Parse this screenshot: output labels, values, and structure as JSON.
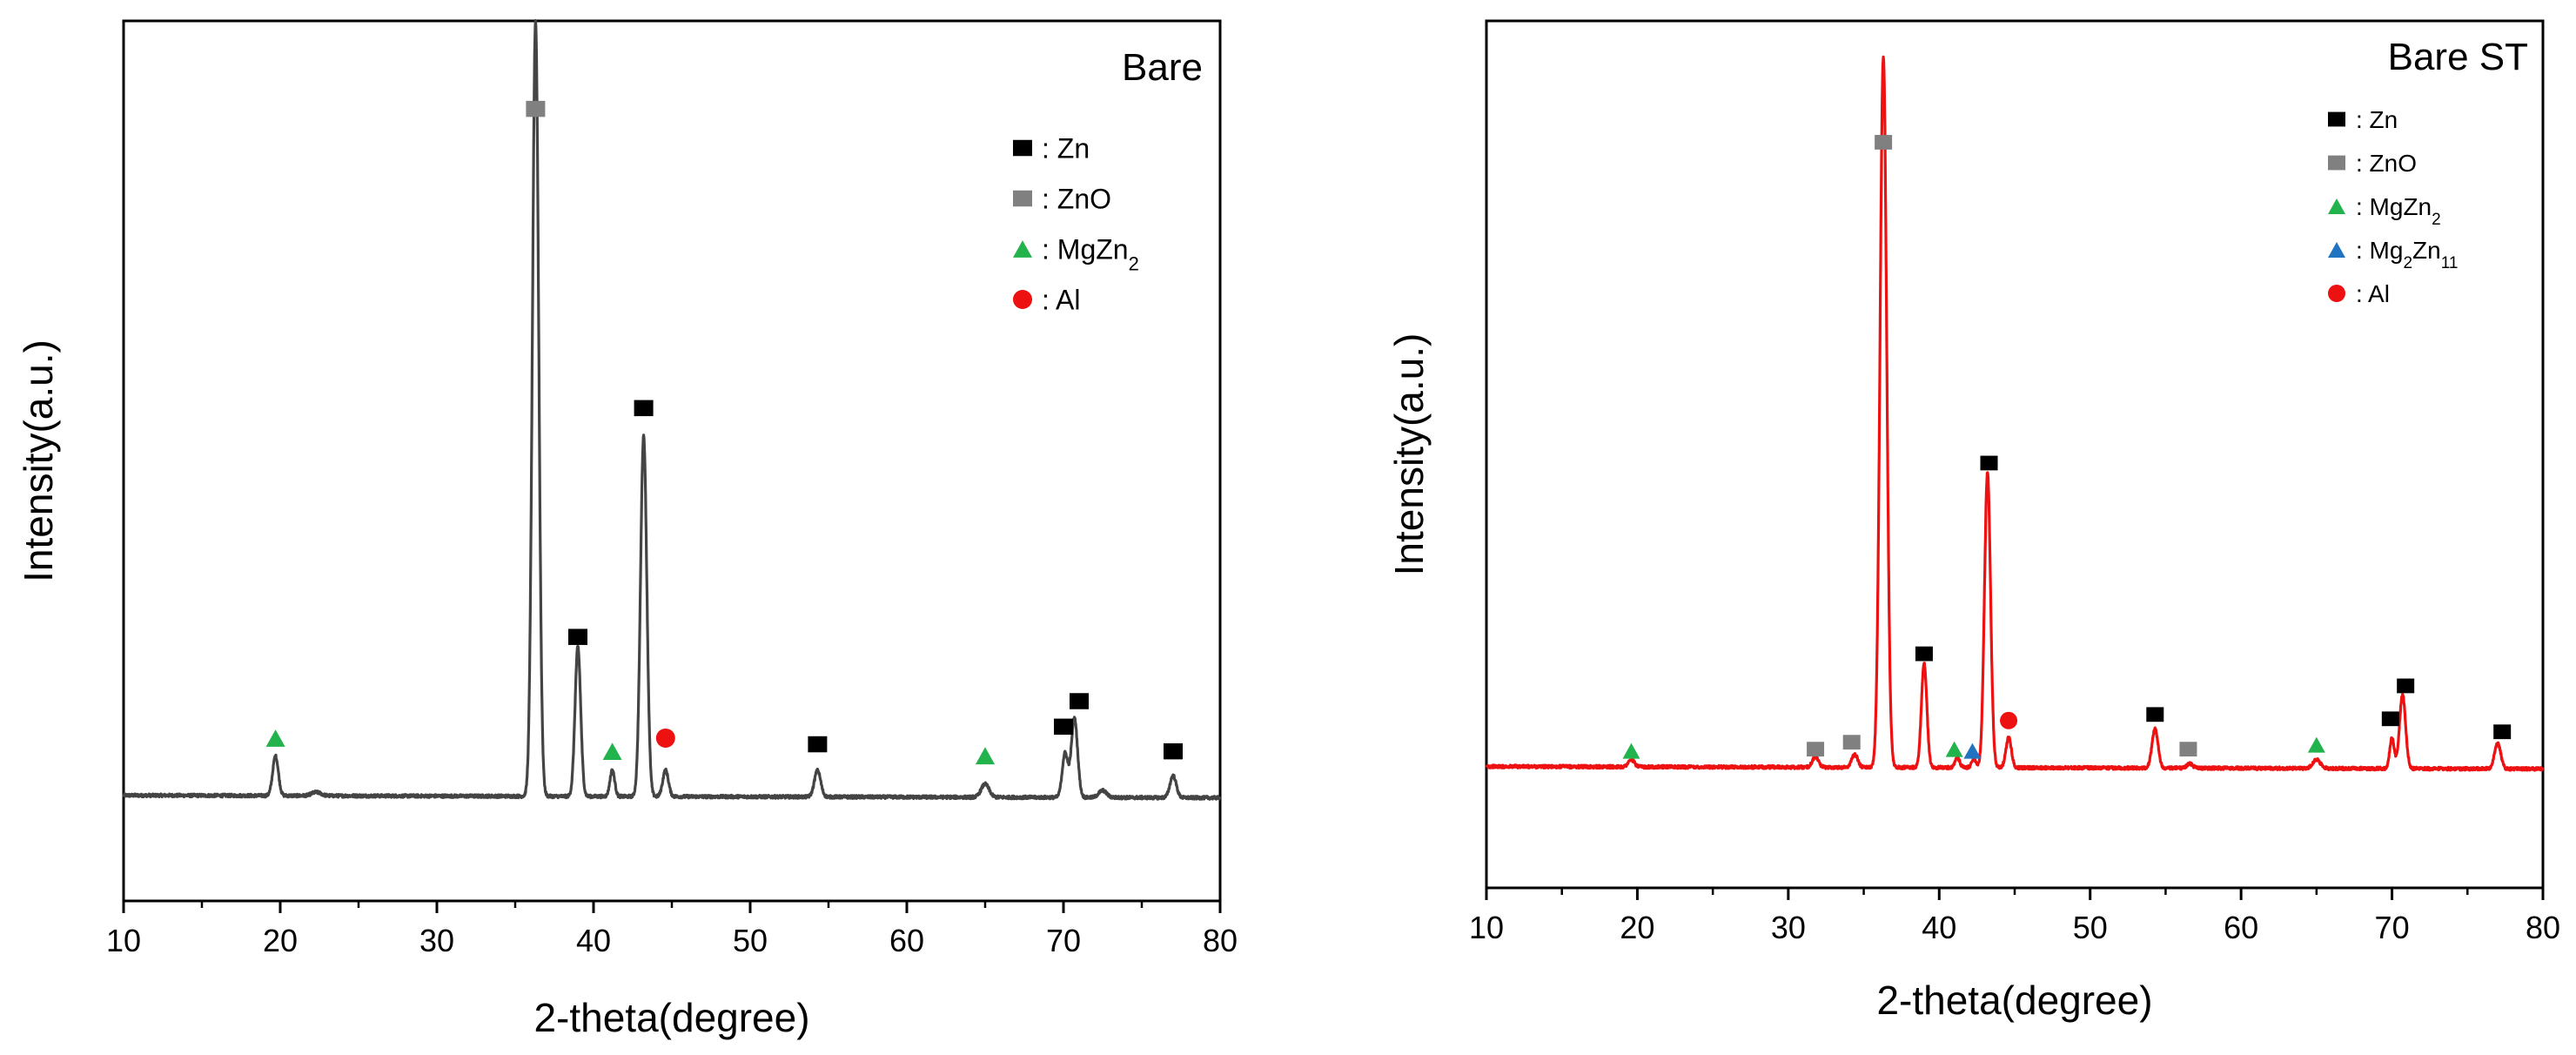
{
  "chart_data": [
    {
      "type": "line",
      "title": "Bare",
      "xlabel": "2-theta(degree)",
      "ylabel": "Intensity(a.u.)",
      "xlim": [
        10,
        80
      ],
      "ylim": [
        0,
        100
      ],
      "x_ticks": [
        10,
        20,
        30,
        40,
        50,
        60,
        70,
        80
      ],
      "line_color": "#444444",
      "baseline": 12,
      "series": [
        {
          "name": "Bare",
          "peaks": [
            {
              "x": 19.7,
              "h": 4.5,
              "w": 0.18
            },
            {
              "x": 22.3,
              "h": 0.4,
              "w": 0.3
            },
            {
              "x": 36.3,
              "h": 88,
              "w": 0.2
            },
            {
              "x": 39.0,
              "h": 17,
              "w": 0.18
            },
            {
              "x": 41.2,
              "h": 3,
              "w": 0.15
            },
            {
              "x": 43.2,
              "h": 41,
              "w": 0.2
            },
            {
              "x": 44.6,
              "h": 3,
              "w": 0.18
            },
            {
              "x": 54.3,
              "h": 3,
              "w": 0.2
            },
            {
              "x": 65.0,
              "h": 1.5,
              "w": 0.25
            },
            {
              "x": 70.1,
              "h": 5,
              "w": 0.18
            },
            {
              "x": 70.7,
              "h": 9,
              "w": 0.2
            },
            {
              "x": 72.5,
              "h": 0.8,
              "w": 0.25
            },
            {
              "x": 77.0,
              "h": 2.5,
              "w": 0.2
            }
          ]
        }
      ],
      "markers": [
        {
          "phase": "ZnO",
          "x": 36.3,
          "y": 90
        },
        {
          "phase": "Zn",
          "x": 43.2,
          "y": 56
        },
        {
          "phase": "Zn",
          "x": 39.0,
          "y": 30
        },
        {
          "phase": "MgZn2",
          "x": 19.7,
          "y": 18.5
        },
        {
          "phase": "MgZn2",
          "x": 41.2,
          "y": 17
        },
        {
          "phase": "Al",
          "x": 44.6,
          "y": 18.5
        },
        {
          "phase": "Zn",
          "x": 54.3,
          "y": 17.8
        },
        {
          "phase": "MgZn2",
          "x": 65.0,
          "y": 16.5
        },
        {
          "phase": "Zn",
          "x": 70.0,
          "y": 19.8
        },
        {
          "phase": "Zn",
          "x": 71.0,
          "y": 22.7
        },
        {
          "phase": "Zn",
          "x": 77.0,
          "y": 17
        }
      ],
      "legend": [
        {
          "phase": "Zn",
          "label": ": Zn"
        },
        {
          "phase": "ZnO",
          "label": ": ZnO"
        },
        {
          "phase": "MgZn2",
          "label": ": MgZn",
          "sub": "2"
        },
        {
          "phase": "Al",
          "label": ": Al"
        }
      ],
      "legend_position": "top-right"
    },
    {
      "type": "line",
      "title": "Bare ST",
      "xlabel": "2-theta(degree)",
      "ylabel": "Intensity(a.u.)",
      "xlim": [
        10,
        80
      ],
      "ylim": [
        0,
        100
      ],
      "x_ticks": [
        10,
        20,
        30,
        40,
        50,
        60,
        70,
        80
      ],
      "line_color": "#ee1111",
      "baseline": 14,
      "series": [
        {
          "name": "Bare ST",
          "peaks": [
            {
              "x": 19.6,
              "h": 0.8,
              "w": 0.2
            },
            {
              "x": 31.8,
              "h": 1.2,
              "w": 0.2
            },
            {
              "x": 34.4,
              "h": 1.5,
              "w": 0.2
            },
            {
              "x": 36.3,
              "h": 82,
              "w": 0.22
            },
            {
              "x": 39.0,
              "h": 12,
              "w": 0.18
            },
            {
              "x": 41.2,
              "h": 1.2,
              "w": 0.15
            },
            {
              "x": 42.3,
              "h": 1.0,
              "w": 0.15
            },
            {
              "x": 43.2,
              "h": 34,
              "w": 0.2
            },
            {
              "x": 44.6,
              "h": 3.5,
              "w": 0.18
            },
            {
              "x": 54.3,
              "h": 4.5,
              "w": 0.2
            },
            {
              "x": 56.6,
              "h": 0.5,
              "w": 0.2
            },
            {
              "x": 65.0,
              "h": 1.0,
              "w": 0.25
            },
            {
              "x": 70.0,
              "h": 3.5,
              "w": 0.15
            },
            {
              "x": 70.7,
              "h": 8.5,
              "w": 0.2
            },
            {
              "x": 77.0,
              "h": 3.0,
              "w": 0.2
            }
          ]
        }
      ],
      "markers": [
        {
          "phase": "ZnO",
          "x": 36.3,
          "y": 86
        },
        {
          "phase": "Zn",
          "x": 43.3,
          "y": 49
        },
        {
          "phase": "Zn",
          "x": 39.0,
          "y": 27
        },
        {
          "phase": "MgZn2",
          "x": 19.6,
          "y": 15.8
        },
        {
          "phase": "ZnO",
          "x": 31.8,
          "y": 16
        },
        {
          "phase": "ZnO",
          "x": 34.2,
          "y": 16.8
        },
        {
          "phase": "MgZn2",
          "x": 41.0,
          "y": 16
        },
        {
          "phase": "Mg2Zn11",
          "x": 42.2,
          "y": 15.8
        },
        {
          "phase": "Al",
          "x": 44.6,
          "y": 19.3
        },
        {
          "phase": "Zn",
          "x": 54.3,
          "y": 20
        },
        {
          "phase": "ZnO",
          "x": 56.5,
          "y": 16
        },
        {
          "phase": "MgZn2",
          "x": 65.0,
          "y": 16.5
        },
        {
          "phase": "Zn",
          "x": 69.9,
          "y": 19.5
        },
        {
          "phase": "Zn",
          "x": 70.9,
          "y": 23.3
        },
        {
          "phase": "Zn",
          "x": 77.3,
          "y": 18
        }
      ],
      "legend": [
        {
          "phase": "Zn",
          "label": ": Zn"
        },
        {
          "phase": "ZnO",
          "label": ": ZnO"
        },
        {
          "phase": "MgZn2",
          "label": ": MgZn",
          "sub": "2"
        },
        {
          "phase": "Mg2Zn11",
          "label": ": Mg",
          "sub": "2",
          "label2": "Zn",
          "sub2": "11"
        },
        {
          "phase": "Al",
          "label": ": Al"
        }
      ],
      "legend_position": "top-right"
    }
  ],
  "colors": {
    "Zn": "#000000",
    "ZnO": "#808080",
    "MgZn2": "#22b34c",
    "Mg2Zn11": "#1f73c0",
    "Al": "#ee1111"
  },
  "marker_shapes": {
    "Zn": "square-icon",
    "ZnO": "square-icon",
    "MgZn2": "triangle-icon",
    "Mg2Zn11": "triangle-icon",
    "Al": "circle-icon"
  }
}
